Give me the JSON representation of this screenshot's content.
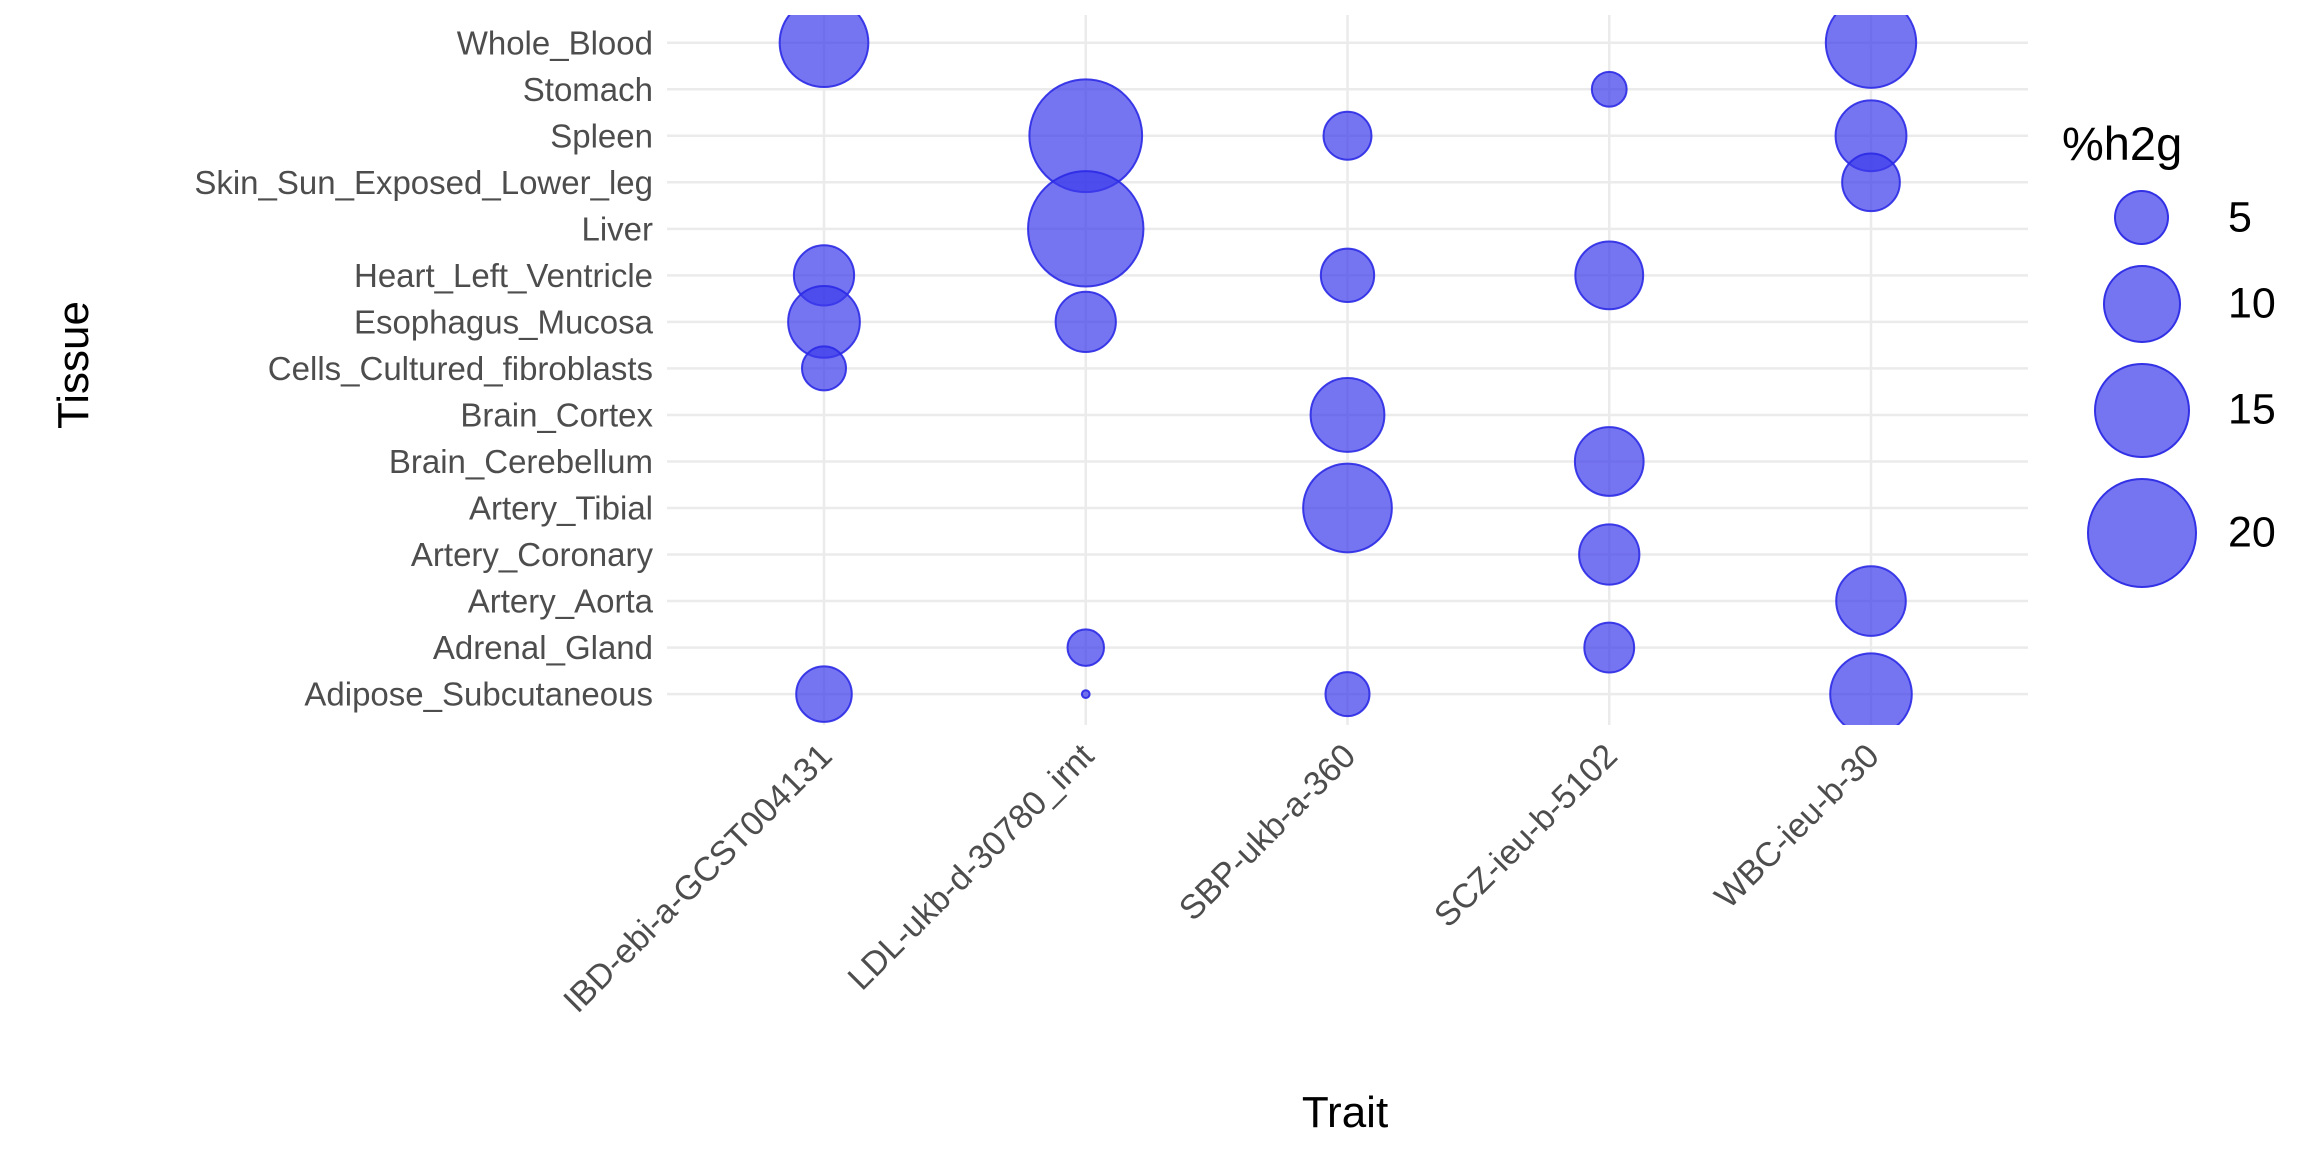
{
  "chart_data": {
    "type": "scatter",
    "subtype": "bubble",
    "title": "",
    "xlabel": "Trait",
    "ylabel": "Tissue",
    "grid": "major-only",
    "legend_position": "right",
    "x_categories": [
      "IBD-ebi-a-GCST004131",
      "LDL-ukb-d-30780_irnt",
      "SBP-ukb-a-360",
      "SCZ-ieu-b-5102",
      "WBC-ieu-b-30"
    ],
    "y_categories_top_to_bottom": [
      "Whole_Blood",
      "Stomach",
      "Spleen",
      "Skin_Sun_Exposed_Lower_leg",
      "Liver",
      "Heart_Left_Ventricle",
      "Esophagus_Mucosa",
      "Cells_Cultured_fibroblasts",
      "Brain_Cortex",
      "Brain_Cerebellum",
      "Artery_Tibial",
      "Artery_Coronary",
      "Artery_Aorta",
      "Adrenal_Gland",
      "Adipose_Subcutaneous"
    ],
    "size_legend": {
      "title": "%h2g",
      "values": [
        5,
        10,
        15,
        20
      ]
    },
    "points": [
      {
        "trait": "IBD-ebi-a-GCST004131",
        "tissue": "Whole_Blood",
        "h2g": 13
      },
      {
        "trait": "IBD-ebi-a-GCST004131",
        "tissue": "Heart_Left_Ventricle",
        "h2g": 6
      },
      {
        "trait": "IBD-ebi-a-GCST004131",
        "tissue": "Esophagus_Mucosa",
        "h2g": 8.5
      },
      {
        "trait": "IBD-ebi-a-GCST004131",
        "tissue": "Cells_Cultured_fibroblasts",
        "h2g": 3.2
      },
      {
        "trait": "IBD-ebi-a-GCST004131",
        "tissue": "Adipose_Subcutaneous",
        "h2g": 5.1
      },
      {
        "trait": "LDL-ukb-d-30780_irnt",
        "tissue": "Spleen",
        "h2g": 21
      },
      {
        "trait": "LDL-ukb-d-30780_irnt",
        "tissue": "Liver",
        "h2g": 22
      },
      {
        "trait": "LDL-ukb-d-30780_irnt",
        "tissue": "Esophagus_Mucosa",
        "h2g": 6
      },
      {
        "trait": "LDL-ukb-d-30780_irnt",
        "tissue": "Adrenal_Gland",
        "h2g": 2.2
      },
      {
        "trait": "LDL-ukb-d-30780_irnt",
        "tissue": "Adipose_Subcutaneous",
        "h2g": 0.1
      },
      {
        "trait": "SBP-ukb-a-360",
        "tissue": "Spleen",
        "h2g": 3.8
      },
      {
        "trait": "SBP-ukb-a-360",
        "tissue": "Heart_Left_Ventricle",
        "h2g": 4.7
      },
      {
        "trait": "SBP-ukb-a-360",
        "tissue": "Brain_Cortex",
        "h2g": 9
      },
      {
        "trait": "SBP-ukb-a-360",
        "tissue": "Artery_Tibial",
        "h2g": 13
      },
      {
        "trait": "SBP-ukb-a-360",
        "tissue": "Adipose_Subcutaneous",
        "h2g": 3.2
      },
      {
        "trait": "SCZ-ieu-b-5102",
        "tissue": "Stomach",
        "h2g": 2
      },
      {
        "trait": "SCZ-ieu-b-5102",
        "tissue": "Heart_Left_Ventricle",
        "h2g": 7.6
      },
      {
        "trait": "SCZ-ieu-b-5102",
        "tissue": "Brain_Cerebellum",
        "h2g": 7.8
      },
      {
        "trait": "SCZ-ieu-b-5102",
        "tissue": "Artery_Coronary",
        "h2g": 6
      },
      {
        "trait": "SCZ-ieu-b-5102",
        "tissue": "Adrenal_Gland",
        "h2g": 4.1
      },
      {
        "trait": "WBC-ieu-b-30",
        "tissue": "Whole_Blood",
        "h2g": 13.5
      },
      {
        "trait": "WBC-ieu-b-30",
        "tissue": "Spleen",
        "h2g": 8.3
      },
      {
        "trait": "WBC-ieu-b-30",
        "tissue": "Skin_Sun_Exposed_Lower_leg",
        "h2g": 5.5
      },
      {
        "trait": "WBC-ieu-b-30",
        "tissue": "Artery_Aorta",
        "h2g": 8
      },
      {
        "trait": "WBC-ieu-b-30",
        "tissue": "Adipose_Subcutaneous",
        "h2g": 11
      }
    ],
    "colors": {
      "bubble_fill": "#3C3BEB",
      "bubble_stroke": "#2B2AE6",
      "gridline": "#EBEBEB",
      "tick_label": "#4D4D4D",
      "axis_title": "#000000",
      "legend_text": "#000000",
      "background": "#FFFFFF"
    }
  }
}
